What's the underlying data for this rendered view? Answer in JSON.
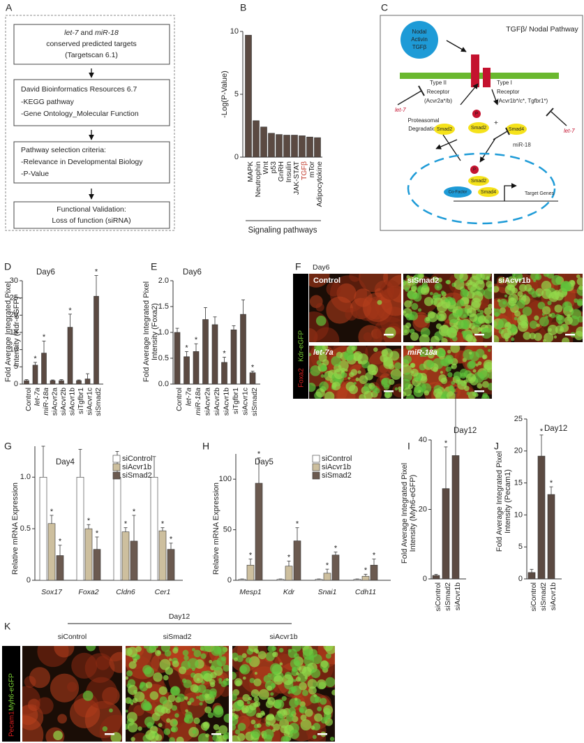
{
  "panel_labels": [
    "A",
    "B",
    "C",
    "D",
    "E",
    "F",
    "G",
    "H",
    "I",
    "J",
    "K"
  ],
  "flowchart": {
    "box1": {
      "parts": [
        "let-7",
        "and",
        "miR-18"
      ],
      "lines": [
        "conserved predicted targets",
        "(Targetscan 6.1)"
      ]
    },
    "box2": [
      "David Bioinformatics Resources 6.7",
      "-KEGG pathway",
      "-Gene Ontology_Molecular Function"
    ],
    "box3": [
      "Pathway selection criteria:",
      "-Relevance in Developmental Biology",
      "-P-Value"
    ],
    "box4": [
      "Functional Validation:",
      "Loss of function (siRNA)"
    ]
  },
  "pathway": {
    "title": "TGFβ/ Nodal Pathway",
    "ligand": [
      "Nodal",
      "Activin",
      "TGFβ"
    ],
    "type2": [
      "Type II",
      "Receptor",
      "(Acvr2a*/b)"
    ],
    "type1": [
      "Type I",
      "Receptor",
      "(Acvr1b*/c*, Tgfbr1*)"
    ],
    "let7": "let-7",
    "mir18": "miR-18",
    "degradation": [
      "Proteasomal",
      "Degradation"
    ],
    "smad2": "Smad2",
    "smad4": "Smad4",
    "p": "P",
    "plus": "+",
    "cofactor": "Co-Factor",
    "target": "Target Genes"
  },
  "images": {
    "F": {
      "day": "Day6",
      "panels": [
        "Control",
        "siSmad2",
        "siAcvr1b",
        "let-7a",
        "miR-18a"
      ],
      "stain_red": "Foxa2",
      "stain_green": "Kdr-eGFP"
    },
    "K": {
      "day": "Day12",
      "panels": [
        "siControl",
        "siSmad2",
        "siAcvr1b"
      ],
      "stain_red": "Pecam1",
      "stain_green": "Myh6-eGFP"
    }
  },
  "chart_data": [
    {
      "type": "bar",
      "ylabel": [
        "-Log(P-Value)"
      ],
      "xlabel": "Signaling pathways",
      "categories": [
        "MAPK",
        "Neutrophin",
        "Wnt",
        "p53",
        "GnRH",
        "Insulin",
        "JAK-STAT",
        "TGFβ",
        "mTor",
        "Adipocytokine"
      ],
      "values": [
        9.7,
        2.9,
        2.4,
        1.9,
        1.8,
        1.75,
        1.75,
        1.7,
        1.6,
        1.55
      ],
      "color": "#5b4a42",
      "highlight": {
        "index": 7,
        "color": "#c0392b"
      },
      "ylim": [
        0,
        10
      ],
      "yticks": [
        0,
        5,
        10
      ]
    },
    {
      "type": "bar",
      "title": "Day6",
      "ylabel": [
        "Fold Average Integrated Pixel",
        "Intensity (Kdr-eGFP)"
      ],
      "categories": [
        "Control",
        "let-7a",
        "miR-18a",
        "siAcvr2a",
        "siAcvr2b",
        "siAcvr1b",
        "siTgfbr1",
        "siAcvr1c",
        "siSmad2"
      ],
      "category_italic": [
        false,
        true,
        true,
        false,
        false,
        false,
        false,
        false,
        false
      ],
      "values": [
        1,
        5.5,
        9,
        1,
        1,
        16.5,
        1,
        1.5,
        25.5
      ],
      "errors": [
        0.3,
        0.8,
        3.5,
        0.2,
        0.3,
        3.8,
        0.2,
        1.5,
        6
      ],
      "significant": [
        false,
        true,
        true,
        false,
        false,
        true,
        false,
        false,
        true
      ],
      "significance_mark": "*",
      "color": "#5b4a42",
      "ylim": [
        0,
        30
      ],
      "yticks": [
        0,
        5,
        10,
        15,
        20,
        25,
        30
      ]
    },
    {
      "type": "bar",
      "title": "Day6",
      "ylabel": [
        "Fold Average Integrated Pixel",
        "Intensity (Foxa2)"
      ],
      "categories": [
        "Control",
        "let-7a",
        "miR-18a",
        "siAcvr2a",
        "siAcvr2b",
        "siAcvr1b",
        "siTgfbr1",
        "siAcvr1c",
        "siSmad2"
      ],
      "category_italic": [
        false,
        true,
        true,
        false,
        false,
        false,
        false,
        false,
        false
      ],
      "values": [
        1.0,
        0.53,
        0.63,
        1.25,
        1.15,
        0.42,
        1.05,
        1.35,
        0.22
      ],
      "errors": [
        0.08,
        0.1,
        0.15,
        0.23,
        0.15,
        0.1,
        0.08,
        0.28,
        0.03
      ],
      "significant": [
        false,
        true,
        true,
        false,
        false,
        true,
        false,
        false,
        true
      ],
      "significance_mark": "*",
      "color": "#5b4a42",
      "ylim": [
        0,
        2.0
      ],
      "yticks": [
        {
          "value": 0,
          "label": "0.0"
        },
        0.5,
        {
          "value": 1,
          "label": "1.0"
        },
        1.5,
        {
          "value": 2,
          "label": "2.0"
        }
      ]
    },
    {
      "type": "bar",
      "title": "Day4",
      "ylabel": [
        "Relative mRNA Expression"
      ],
      "categories": [
        "Sox17",
        "Foxa2",
        "Cldn6",
        "Cer1"
      ],
      "category_italic": true,
      "significance_mark": "*",
      "series": [
        {
          "name": "siControl",
          "color": "#ffffff",
          "values": [
            1,
            1,
            1,
            1
          ],
          "errors": [
            0.3,
            0.27,
            0.25,
            0.2
          ],
          "significant": [
            false,
            false,
            false,
            false
          ]
        },
        {
          "name": "siAcvr1b",
          "color": "#cdbf9e",
          "values": [
            0.55,
            0.5,
            0.47,
            0.48
          ],
          "errors": [
            0.08,
            0.04,
            0.04,
            0.03
          ],
          "significant": [
            true,
            true,
            true,
            true
          ]
        },
        {
          "name": "siSmad2",
          "color": "#6b5a50",
          "values": [
            0.24,
            0.3,
            0.38,
            0.3
          ],
          "errors": [
            0.1,
            0.12,
            0.25,
            0.06
          ],
          "significant": [
            true,
            true,
            true,
            true
          ]
        }
      ],
      "legend": "top-right",
      "ylim": [
        0,
        1.3
      ],
      "yticks": [
        0,
        0.5,
        {
          "value": 1,
          "label": "1.0"
        }
      ]
    },
    {
      "type": "bar",
      "title": "Day5",
      "ylabel": [
        "Relative mRNA Expression"
      ],
      "categories": [
        "Mesp1",
        "Kdr",
        "Snai1",
        "Cdh11"
      ],
      "category_italic": true,
      "significance_mark": "*",
      "series": [
        {
          "name": "siControl",
          "color": "#ffffff",
          "values": [
            1,
            1,
            1,
            1
          ],
          "errors": [
            0.3,
            0.3,
            0.3,
            0.3
          ],
          "significant": [
            false,
            false,
            false,
            false
          ]
        },
        {
          "name": "siAcvr1b",
          "color": "#cdbf9e",
          "values": [
            15,
            14,
            7,
            4
          ],
          "errors": [
            6,
            5,
            4,
            2
          ],
          "significant": [
            true,
            true,
            true,
            true
          ]
        },
        {
          "name": "siSmad2",
          "color": "#6b5a50",
          "values": [
            96,
            39,
            25,
            15
          ],
          "errors": [
            25,
            13,
            3,
            6
          ],
          "significant": [
            true,
            true,
            true,
            true
          ]
        }
      ],
      "legend": "top-right",
      "ylim": [
        0,
        125
      ],
      "yticks": [
        0,
        50,
        100
      ]
    },
    {
      "type": "bar",
      "title": "Day12",
      "ylabel": [
        "Fold Average Integrated Pixel",
        "Intensity (Myh6-eGFP)"
      ],
      "categories": [
        "siControl",
        "siSmad2",
        "siAcvr1b"
      ],
      "values": [
        1,
        26,
        35.5
      ],
      "errors": [
        0.3,
        12,
        18
      ],
      "significant": [
        false,
        true,
        true
      ],
      "significance_mark": "*",
      "color": "#5b4a42",
      "ylim": [
        0,
        40
      ],
      "yticks": [
        0,
        20,
        40
      ]
    },
    {
      "type": "bar",
      "title": "Day12",
      "ylabel": [
        "Fold Average Integrated Pixel",
        "Intensity (Pecam1)"
      ],
      "categories": [
        "siControl",
        "siSmad2",
        "siAcvr1b"
      ],
      "values": [
        1,
        19.2,
        13.2
      ],
      "errors": [
        0.5,
        3.3,
        1.2
      ],
      "significant": [
        false,
        true,
        true
      ],
      "significance_mark": "*",
      "color": "#5b4a42",
      "ylim": [
        0,
        25
      ],
      "yticks": [
        0,
        5,
        10,
        15,
        20,
        25
      ]
    }
  ]
}
